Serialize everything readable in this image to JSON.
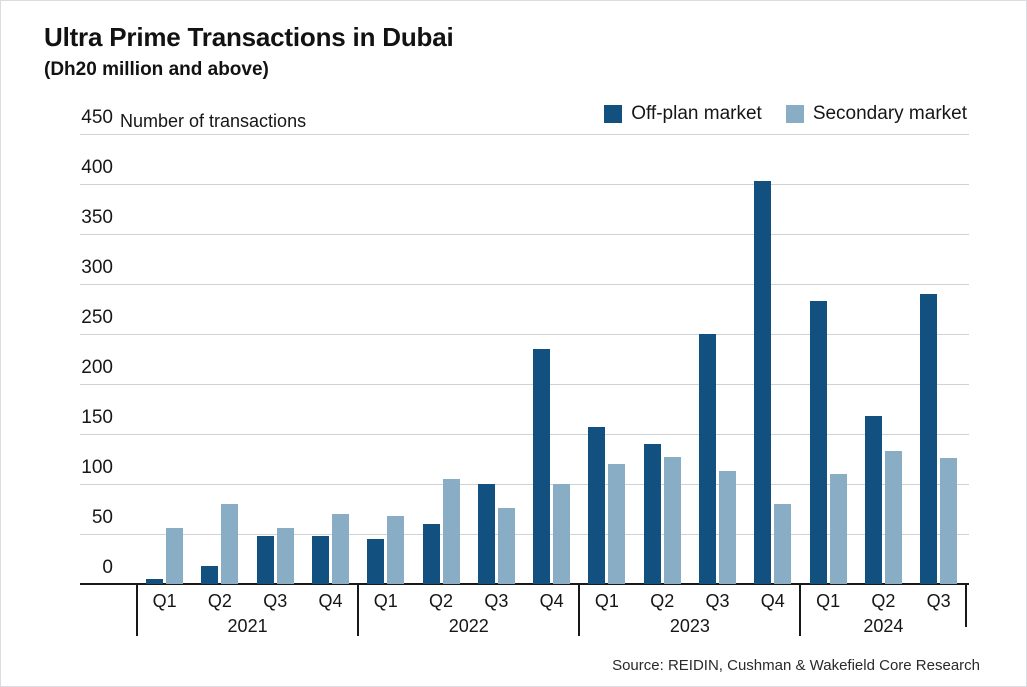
{
  "source_note": "Source: REIDIN, Cushman & Wakefield Core Research",
  "chart_data": {
    "type": "bar",
    "title": "Ultra Prime Transactions in Dubai",
    "subtitle": "(Dh20 million and above)",
    "ylabel": "Number of transactions",
    "xlabel": "",
    "ylim": [
      0,
      450
    ],
    "yticks": [
      0,
      50,
      100,
      150,
      200,
      250,
      300,
      350,
      400,
      450
    ],
    "grid": true,
    "legend_position": "top-right",
    "groups": [
      {
        "year": "2021",
        "quarters": [
          "Q1",
          "Q2",
          "Q3",
          "Q4"
        ]
      },
      {
        "year": "2022",
        "quarters": [
          "Q1",
          "Q2",
          "Q3",
          "Q4"
        ]
      },
      {
        "year": "2023",
        "quarters": [
          "Q1",
          "Q2",
          "Q3",
          "Q4"
        ]
      },
      {
        "year": "2024",
        "quarters": [
          "Q1",
          "Q2",
          "Q3"
        ]
      }
    ],
    "categories": [
      "Q1 2021",
      "Q2 2021",
      "Q3 2021",
      "Q4 2021",
      "Q1 2022",
      "Q2 2022",
      "Q3 2022",
      "Q4 2022",
      "Q1 2023",
      "Q2 2023",
      "Q3 2023",
      "Q4 2023",
      "Q1 2024",
      "Q2 2024",
      "Q3 2024"
    ],
    "series": [
      {
        "name": "Off-plan market",
        "color": "#11507f",
        "values": [
          5,
          18,
          48,
          48,
          45,
          60,
          100,
          235,
          157,
          140,
          250,
          403,
          283,
          168,
          290
        ]
      },
      {
        "name": "Secondary market",
        "color": "#8aadc6",
        "values": [
          56,
          80,
          56,
          70,
          68,
          105,
          76,
          100,
          120,
          127,
          113,
          80,
          110,
          133,
          126
        ]
      }
    ]
  }
}
